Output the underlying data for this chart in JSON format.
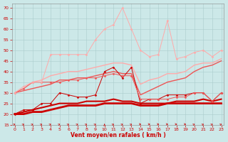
{
  "background_color": "#cce8e8",
  "grid_color": "#aacccc",
  "xlabel": "Vent moyen/en rafales ( km/h )",
  "xlabel_color": "#cc0000",
  "xtick_fontsize": 4.5,
  "ytick_fontsize": 4.5,
  "xlim": [
    -0.3,
    23.3
  ],
  "ylim": [
    15,
    72
  ],
  "yticks": [
    15,
    20,
    25,
    30,
    35,
    40,
    45,
    50,
    55,
    60,
    65,
    70
  ],
  "xticks": [
    0,
    1,
    2,
    3,
    4,
    5,
    6,
    7,
    8,
    9,
    10,
    11,
    12,
    13,
    14,
    15,
    16,
    17,
    18,
    19,
    20,
    21,
    22,
    23
  ],
  "series": [
    {
      "name": "dark_red_diamond",
      "x": [
        0,
        1,
        2,
        3,
        4,
        5,
        6,
        7,
        8,
        9,
        10,
        11,
        12,
        13,
        14,
        15,
        16,
        17,
        18,
        19,
        20,
        21,
        22,
        23
      ],
      "y": [
        20,
        22,
        22,
        25,
        25,
        30,
        29,
        28,
        28,
        29,
        40,
        42,
        37,
        42,
        25,
        27,
        27,
        29,
        29,
        29,
        30,
        30,
        26,
        30
      ],
      "color": "#cc0000",
      "lw": 0.7,
      "marker": "D",
      "ms": 1.5
    },
    {
      "name": "dark_red_thick1",
      "x": [
        0,
        1,
        2,
        3,
        4,
        5,
        6,
        7,
        8,
        9,
        10,
        11,
        12,
        13,
        14,
        15,
        16,
        17,
        18,
        19,
        20,
        21,
        22,
        23
      ],
      "y": [
        20,
        21,
        22,
        23,
        24,
        25,
        25,
        25,
        26,
        26,
        26,
        27,
        26,
        26,
        25,
        25,
        25,
        25,
        26,
        26,
        26,
        27,
        26,
        27
      ],
      "color": "#cc0000",
      "lw": 1.5,
      "marker": null,
      "ms": 0
    },
    {
      "name": "dark_red_thick2",
      "x": [
        0,
        1,
        2,
        3,
        4,
        5,
        6,
        7,
        8,
        9,
        10,
        11,
        12,
        13,
        14,
        15,
        16,
        17,
        18,
        19,
        20,
        21,
        22,
        23
      ],
      "y": [
        20,
        20,
        21,
        21,
        22,
        23,
        24,
        24,
        24,
        24,
        25,
        25,
        25,
        25,
        24,
        24,
        24,
        25,
        25,
        25,
        25,
        25,
        25,
        25
      ],
      "color": "#cc0000",
      "lw": 2.0,
      "marker": null,
      "ms": 0
    },
    {
      "name": "med_red_diamond",
      "x": [
        0,
        1,
        2,
        3,
        4,
        5,
        6,
        7,
        8,
        9,
        10,
        11,
        12,
        13,
        14,
        15,
        16,
        17,
        18,
        19,
        20,
        21,
        22,
        23
      ],
      "y": [
        30,
        32,
        35,
        35,
        35,
        35,
        36,
        36,
        37,
        37,
        38,
        39,
        38,
        38,
        27,
        27,
        27,
        27,
        28,
        28,
        30,
        30,
        26,
        30
      ],
      "color": "#ee5555",
      "lw": 0.7,
      "marker": "D",
      "ms": 1.5
    },
    {
      "name": "med_red_line",
      "x": [
        0,
        1,
        2,
        3,
        4,
        5,
        6,
        7,
        8,
        9,
        10,
        11,
        12,
        13,
        14,
        15,
        16,
        17,
        18,
        19,
        20,
        21,
        22,
        23
      ],
      "y": [
        30,
        31,
        32,
        33,
        34,
        36,
        36,
        37,
        37,
        38,
        39,
        40,
        39,
        39,
        29,
        31,
        33,
        35,
        36,
        37,
        40,
        42,
        43,
        45
      ],
      "color": "#ee5555",
      "lw": 1.0,
      "marker": null,
      "ms": 0
    },
    {
      "name": "light_pink_diamond",
      "x": [
        0,
        1,
        2,
        3,
        4,
        5,
        6,
        7,
        8,
        9,
        10,
        11,
        12,
        13,
        14,
        15,
        16,
        17,
        18,
        19,
        20,
        21,
        22,
        23
      ],
      "y": [
        30,
        33,
        35,
        35,
        48,
        48,
        48,
        48,
        48,
        55,
        60,
        62,
        70,
        60,
        50,
        47,
        48,
        64,
        46,
        47,
        49,
        50,
        47,
        50
      ],
      "color": "#ffaaaa",
      "lw": 0.7,
      "marker": "D",
      "ms": 1.5
    },
    {
      "name": "light_pink_line",
      "x": [
        0,
        1,
        2,
        3,
        4,
        5,
        6,
        7,
        8,
        9,
        10,
        11,
        12,
        13,
        14,
        15,
        16,
        17,
        18,
        19,
        20,
        21,
        22,
        23
      ],
      "y": [
        30,
        32,
        35,
        36,
        38,
        39,
        40,
        40,
        41,
        42,
        43,
        44,
        44,
        43,
        34,
        36,
        37,
        39,
        39,
        40,
        43,
        44,
        44,
        46
      ],
      "color": "#ffaaaa",
      "lw": 1.0,
      "marker": null,
      "ms": 0
    }
  ],
  "arrow_directions": [
    45,
    45,
    45,
    45,
    45,
    45,
    45,
    45,
    45,
    45,
    90,
    45,
    45,
    45,
    0,
    0,
    0,
    0,
    0,
    0,
    45,
    45,
    45,
    45
  ]
}
